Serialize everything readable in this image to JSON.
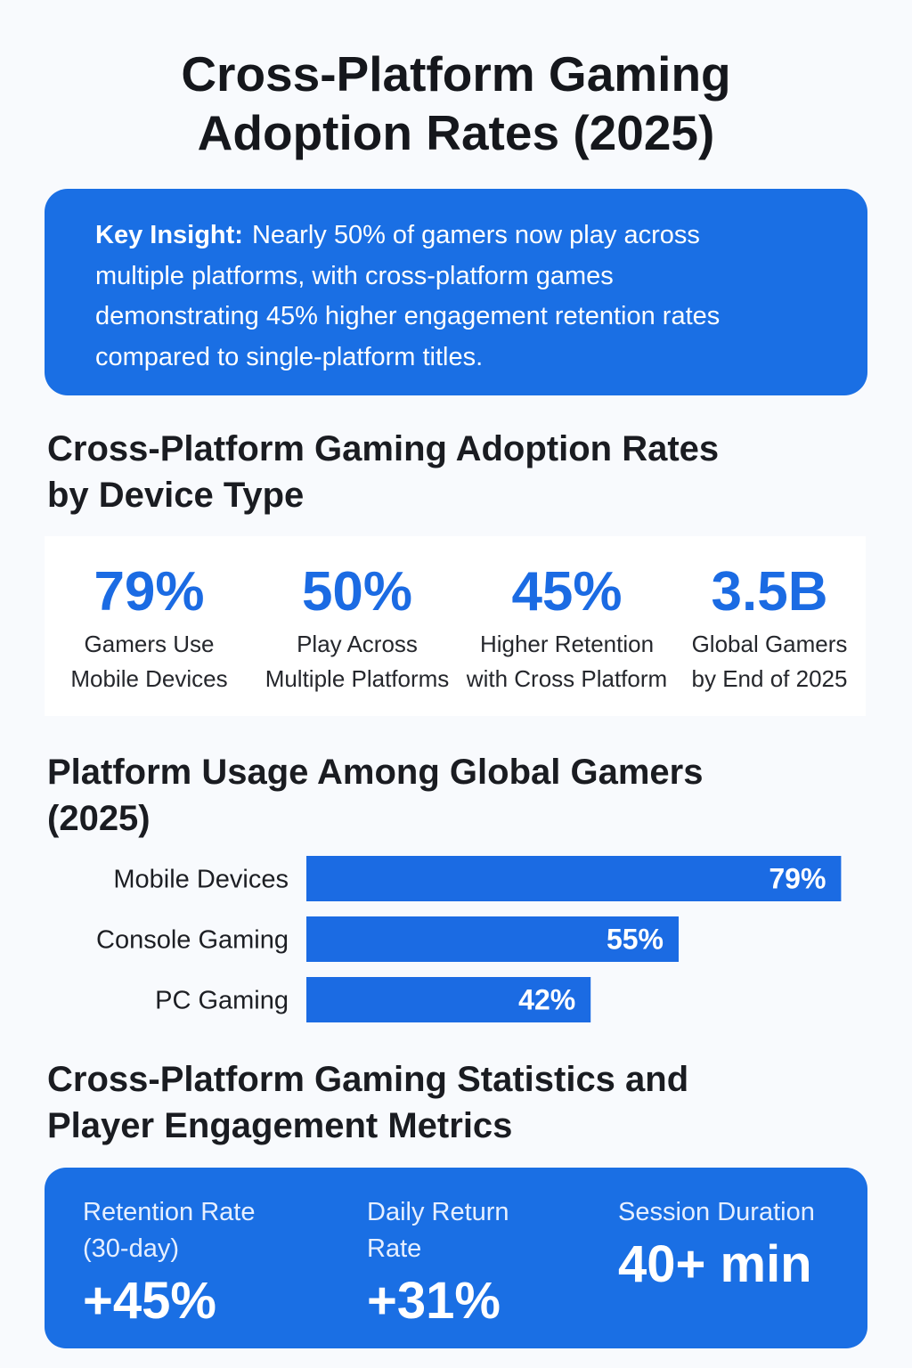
{
  "title_line1": "Cross-Platform Gaming",
  "title_line2": "Adoption Rates (2025)",
  "insight": {
    "label": "Key Insight:",
    "line1": "Nearly 50% of gamers now play across",
    "line2": "multiple platforms, with cross-platform games",
    "line3": "demonstrating 45% higher engagement retention rates",
    "line4": "compared to single-platform titles."
  },
  "section1": {
    "title_line1": "Cross-Platform Gaming Adoption Rates",
    "title_line2": "by Device Type"
  },
  "stats": [
    {
      "value": "79%",
      "label_line1": "Gamers Use",
      "label_line2": "Mobile Devices"
    },
    {
      "value": "50%",
      "label_line1": "Play Across",
      "label_line2": "Multiple Platforms"
    },
    {
      "value": "45%",
      "label_line1": "Higher Retention",
      "label_line2": "with Cross Platform"
    },
    {
      "value": "3.5B",
      "label_line1": "Global Gamers",
      "label_line2": "by End of 2025"
    }
  ],
  "section2": {
    "title_line1": "Platform Usage Among Global Gamers",
    "title_line2": "(2025)"
  },
  "chart_data": {
    "type": "bar",
    "orientation": "horizontal",
    "title": "Platform Usage Among Global Gamers (2025)",
    "categories": [
      "Mobile Devices",
      "Console Gaming",
      "PC Gaming"
    ],
    "values": [
      79,
      55,
      42
    ],
    "value_labels": [
      "79%",
      "55%",
      "42%"
    ],
    "xlim": [
      0,
      100
    ],
    "grid": false,
    "legend": "none",
    "bar_color": "#1b6be3"
  },
  "section3": {
    "title_line1": "Cross-Platform Gaming Statistics and",
    "title_line2": "Player Engagement Metrics"
  },
  "metrics": [
    {
      "label_line1": "Retention Rate",
      "label_line2": "(30-day)",
      "value": "+45%"
    },
    {
      "label_line1": "Daily Return",
      "label_line2": "Rate",
      "value": "+31%"
    },
    {
      "label_line1": "Session Duration",
      "label_line2": "",
      "value": "40+ min"
    }
  ],
  "colors": {
    "accent": "#1b6be3",
    "box_background": "#1a6fe4",
    "page_background": "#f8fafd",
    "text": "#16181d"
  }
}
